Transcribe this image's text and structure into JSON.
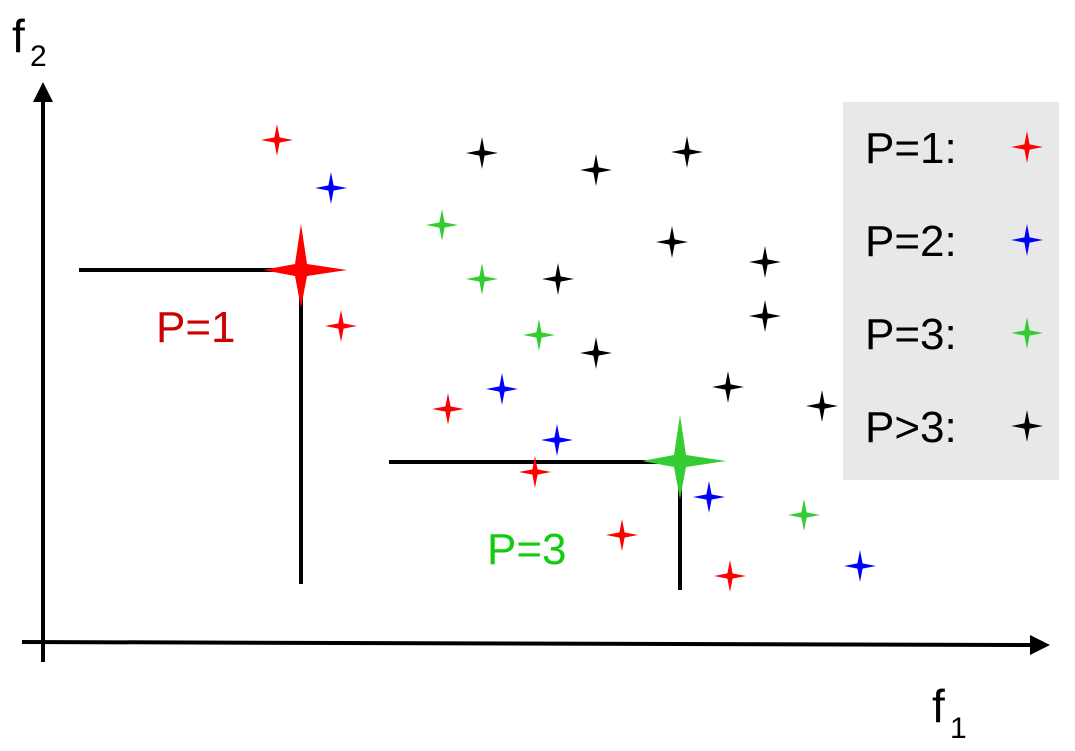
{
  "axes": {
    "x_label": "f",
    "x_subscript": "1",
    "y_label": "f",
    "y_subscript": "2"
  },
  "colors": {
    "rank1": "#ff0000",
    "rank2": "#0000ff",
    "rank3": "#33cc33",
    "rank_more": "#000000",
    "rank1_label": "#cc0000",
    "rank3_label": "#11cc11",
    "legend_background": "#e8e8e8"
  },
  "front_labels": [
    {
      "text": "P=1",
      "rank": "rank1"
    },
    {
      "text": "P=3",
      "rank": "rank3"
    }
  ],
  "legend": {
    "items": [
      {
        "label": "P=1:",
        "rank": "rank1"
      },
      {
        "label": "P=2:",
        "rank": "rank2"
      },
      {
        "label": "P=3:",
        "rank": "rank3"
      },
      {
        "label": "P>3:",
        "rank": "rank_more"
      }
    ]
  },
  "points": [
    {
      "f1": 277,
      "f2": 140,
      "rank": "rank1"
    },
    {
      "f1": 341,
      "f2": 326,
      "rank": "rank1"
    },
    {
      "f1": 448,
      "f2": 409,
      "rank": "rank1"
    },
    {
      "f1": 535,
      "f2": 472,
      "rank": "rank1"
    },
    {
      "f1": 622,
      "f2": 535,
      "rank": "rank1"
    },
    {
      "f1": 730,
      "f2": 576,
      "rank": "rank1"
    },
    {
      "f1": 331,
      "f2": 188,
      "rank": "rank2"
    },
    {
      "f1": 502,
      "f2": 389,
      "rank": "rank2"
    },
    {
      "f1": 557,
      "f2": 440,
      "rank": "rank2"
    },
    {
      "f1": 709,
      "f2": 497,
      "rank": "rank2"
    },
    {
      "f1": 860,
      "f2": 566,
      "rank": "rank2"
    },
    {
      "f1": 442,
      "f2": 225,
      "rank": "rank3"
    },
    {
      "f1": 482,
      "f2": 279,
      "rank": "rank3"
    },
    {
      "f1": 539,
      "f2": 335,
      "rank": "rank3"
    },
    {
      "f1": 804,
      "f2": 515,
      "rank": "rank3"
    },
    {
      "f1": 482,
      "f2": 153,
      "rank": "rank_more"
    },
    {
      "f1": 596,
      "f2": 170,
      "rank": "rank_more"
    },
    {
      "f1": 687,
      "f2": 152,
      "rank": "rank_more"
    },
    {
      "f1": 672,
      "f2": 242,
      "rank": "rank_more"
    },
    {
      "f1": 558,
      "f2": 279,
      "rank": "rank_more"
    },
    {
      "f1": 765,
      "f2": 262,
      "rank": "rank_more"
    },
    {
      "f1": 765,
      "f2": 316,
      "rank": "rank_more"
    },
    {
      "f1": 596,
      "f2": 353,
      "rank": "rank_more"
    },
    {
      "f1": 728,
      "f2": 387,
      "rank": "rank_more"
    },
    {
      "f1": 822,
      "f2": 406,
      "rank": "rank_more"
    }
  ],
  "highlighted_points": [
    {
      "f1": 301,
      "f2": 270,
      "rank": "rank1"
    },
    {
      "f1": 680,
      "f2": 461,
      "rank": "rank3"
    }
  ]
}
